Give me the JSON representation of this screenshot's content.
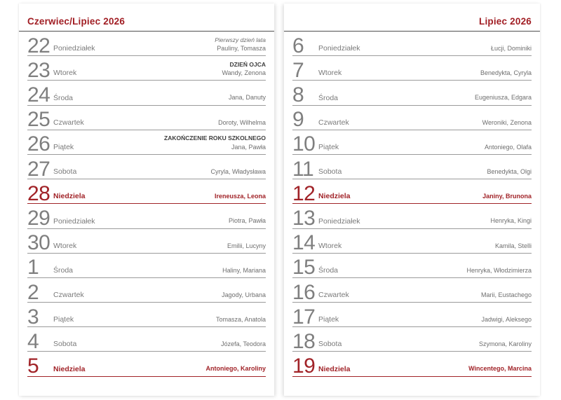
{
  "colors": {
    "accent_red": "#A12328",
    "day_number_gray": "#7f7f7f",
    "text_gray": "#6e6e6e",
    "header_rule": "#4f4f4f",
    "row_rule": "#9b9b9b",
    "page_background": "#ffffff"
  },
  "pages": [
    {
      "side": "left",
      "title": "Czerwiec/Lipiec 2026",
      "title_align": "left",
      "rows": [
        {
          "day": "22",
          "weekday": "Poniedziałek",
          "note": "Pierwszy dzień lata",
          "note_style": "italic",
          "names": "Pauliny, Tomasza",
          "sunday": false
        },
        {
          "day": "23",
          "weekday": "Wtorek",
          "note": "DZIEŃ OJCA",
          "note_style": "bold",
          "names": "Wandy, Zenona",
          "sunday": false
        },
        {
          "day": "24",
          "weekday": "Środa",
          "note": "",
          "note_style": "",
          "names": "Jana, Danuty",
          "sunday": false
        },
        {
          "day": "25",
          "weekday": "Czwartek",
          "note": "",
          "note_style": "",
          "names": "Doroty, Wilhelma",
          "sunday": false
        },
        {
          "day": "26",
          "weekday": "Piątek",
          "note": "ZAKOŃCZENIE ROKU SZKOLNEGO",
          "note_style": "bold",
          "names": "Jana, Pawła",
          "sunday": false
        },
        {
          "day": "27",
          "weekday": "Sobota",
          "note": "",
          "note_style": "",
          "names": "Cyryla, Władysława",
          "sunday": false
        },
        {
          "day": "28",
          "weekday": "Niedziela",
          "note": "",
          "note_style": "",
          "names": "Ireneusza, Leona",
          "sunday": true
        },
        {
          "day": "29",
          "weekday": "Poniedziałek",
          "note": "",
          "note_style": "",
          "names": "Piotra, Pawła",
          "sunday": false
        },
        {
          "day": "30",
          "weekday": "Wtorek",
          "note": "",
          "note_style": "",
          "names": "Emilii, Lucyny",
          "sunday": false
        },
        {
          "day": "1",
          "weekday": "Środa",
          "note": "",
          "note_style": "",
          "names": "Haliny, Mariana",
          "sunday": false
        },
        {
          "day": "2",
          "weekday": "Czwartek",
          "note": "",
          "note_style": "",
          "names": "Jagody, Urbana",
          "sunday": false
        },
        {
          "day": "3",
          "weekday": "Piątek",
          "note": "",
          "note_style": "",
          "names": "Tomasza, Anatola",
          "sunday": false
        },
        {
          "day": "4",
          "weekday": "Sobota",
          "note": "",
          "note_style": "",
          "names": "Józefa, Teodora",
          "sunday": false
        },
        {
          "day": "5",
          "weekday": "Niedziela",
          "note": "",
          "note_style": "",
          "names": "Antoniego, Karoliny",
          "sunday": true
        }
      ]
    },
    {
      "side": "right",
      "title": "Lipiec 2026",
      "title_align": "right",
      "rows": [
        {
          "day": "6",
          "weekday": "Poniedziałek",
          "note": "",
          "note_style": "",
          "names": "Łucji, Dominiki",
          "sunday": false
        },
        {
          "day": "7",
          "weekday": "Wtorek",
          "note": "",
          "note_style": "",
          "names": "Benedykta, Cyryla",
          "sunday": false
        },
        {
          "day": "8",
          "weekday": "Środa",
          "note": "",
          "note_style": "",
          "names": "Eugeniusza, Edgara",
          "sunday": false
        },
        {
          "day": "9",
          "weekday": "Czwartek",
          "note": "",
          "note_style": "",
          "names": "Weroniki, Zenona",
          "sunday": false
        },
        {
          "day": "10",
          "weekday": "Piątek",
          "note": "",
          "note_style": "",
          "names": "Antoniego, Olafa",
          "sunday": false
        },
        {
          "day": "11",
          "weekday": "Sobota",
          "note": "",
          "note_style": "",
          "names": "Benedykta, Olgi",
          "sunday": false
        },
        {
          "day": "12",
          "weekday": "Niedziela",
          "note": "",
          "note_style": "",
          "names": "Janiny, Brunona",
          "sunday": true
        },
        {
          "day": "13",
          "weekday": "Poniedziałek",
          "note": "",
          "note_style": "",
          "names": "Henryka, Kingi",
          "sunday": false
        },
        {
          "day": "14",
          "weekday": "Wtorek",
          "note": "",
          "note_style": "",
          "names": "Kamila, Stelli",
          "sunday": false
        },
        {
          "day": "15",
          "weekday": "Środa",
          "note": "",
          "note_style": "",
          "names": "Henryka, Włodzimierza",
          "sunday": false
        },
        {
          "day": "16",
          "weekday": "Czwartek",
          "note": "",
          "note_style": "",
          "names": "Marii, Eustachego",
          "sunday": false
        },
        {
          "day": "17",
          "weekday": "Piątek",
          "note": "",
          "note_style": "",
          "names": "Jadwigi, Aleksego",
          "sunday": false
        },
        {
          "day": "18",
          "weekday": "Sobota",
          "note": "",
          "note_style": "",
          "names": "Szymona, Karoliny",
          "sunday": false
        },
        {
          "day": "19",
          "weekday": "Niedziela",
          "note": "",
          "note_style": "",
          "names": "Wincentego, Marcina",
          "sunday": true
        }
      ]
    }
  ]
}
